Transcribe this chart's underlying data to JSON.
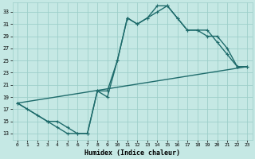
{
  "xlabel": "Humidex (Indice chaleur)",
  "background_color": "#c5e8e4",
  "grid_color": "#9ecfca",
  "line_color": "#1e6b6b",
  "xlim": [
    -0.5,
    23.5
  ],
  "ylim": [
    12.0,
    34.5
  ],
  "xticks": [
    0,
    1,
    2,
    3,
    4,
    5,
    6,
    7,
    8,
    9,
    10,
    11,
    12,
    13,
    14,
    15,
    16,
    17,
    18,
    19,
    20,
    21,
    22,
    23
  ],
  "yticks": [
    13,
    15,
    17,
    19,
    21,
    23,
    25,
    27,
    29,
    31,
    33
  ],
  "line1_x": [
    0,
    1,
    2,
    3,
    4,
    5,
    6,
    7,
    8,
    9,
    10,
    11,
    12,
    13,
    14,
    15,
    16,
    17,
    18,
    19,
    20,
    21,
    22,
    23
  ],
  "line1_y": [
    18,
    17,
    16,
    15,
    14,
    13,
    13,
    13,
    20,
    20,
    25,
    32,
    31,
    32,
    34,
    34,
    32,
    30,
    30,
    29,
    29,
    27,
    24,
    24
  ],
  "line2_x": [
    0,
    3,
    4,
    5,
    6,
    7,
    8,
    9,
    10,
    11,
    12,
    13,
    14,
    15,
    16,
    17,
    18,
    19,
    20,
    21,
    22,
    23
  ],
  "line2_y": [
    18,
    15,
    15,
    14,
    13,
    13,
    20,
    19,
    25,
    32,
    31,
    32,
    33,
    34,
    32,
    30,
    30,
    30,
    28,
    26,
    24,
    24
  ],
  "line3_x": [
    0,
    23
  ],
  "line3_y": [
    18,
    24
  ],
  "marker_size": 2.5,
  "line_width": 1.0
}
